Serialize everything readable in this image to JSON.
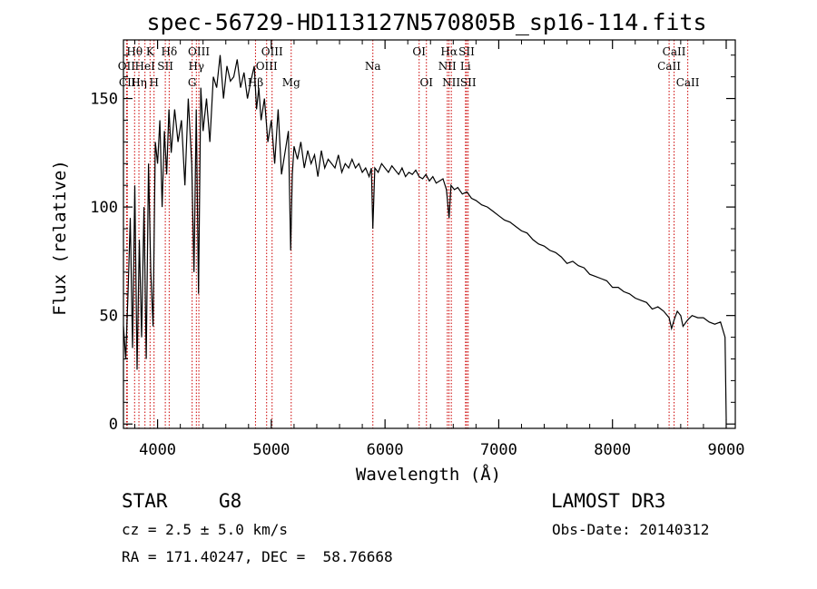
{
  "chart_data": {
    "type": "line",
    "title": "spec-56729-HD113127N570805B_sp16-114.fits",
    "xlabel": "Wavelength (Å)",
    "ylabel": "Flux (relative)",
    "xlim": [
      3700,
      9080
    ],
    "ylim": [
      -2,
      177
    ],
    "xticks": [
      4000,
      5000,
      6000,
      7000,
      8000,
      9000
    ],
    "yticks": [
      0,
      50,
      100,
      150
    ],
    "spectrum": {
      "x": [
        3700,
        3720,
        3740,
        3760,
        3780,
        3800,
        3820,
        3840,
        3860,
        3880,
        3900,
        3920,
        3940,
        3960,
        3980,
        4000,
        4020,
        4040,
        4060,
        4080,
        4100,
        4120,
        4150,
        4180,
        4210,
        4240,
        4270,
        4300,
        4320,
        4340,
        4360,
        4380,
        4400,
        4430,
        4460,
        4490,
        4520,
        4550,
        4580,
        4610,
        4640,
        4670,
        4700,
        4730,
        4760,
        4790,
        4820,
        4850,
        4870,
        4890,
        4910,
        4940,
        4970,
        5000,
        5030,
        5060,
        5090,
        5120,
        5150,
        5170,
        5185,
        5200,
        5230,
        5260,
        5290,
        5320,
        5350,
        5380,
        5410,
        5440,
        5470,
        5500,
        5530,
        5560,
        5590,
        5620,
        5650,
        5680,
        5710,
        5740,
        5770,
        5800,
        5830,
        5860,
        5880,
        5893,
        5910,
        5940,
        5970,
        6000,
        6030,
        6060,
        6090,
        6120,
        6150,
        6180,
        6210,
        6240,
        6270,
        6300,
        6330,
        6360,
        6390,
        6420,
        6450,
        6480,
        6510,
        6540,
        6563,
        6580,
        6610,
        6640,
        6680,
        6720,
        6760,
        6800,
        6850,
        6900,
        6950,
        7000,
        7050,
        7100,
        7150,
        7200,
        7250,
        7300,
        7350,
        7400,
        7450,
        7500,
        7550,
        7600,
        7650,
        7700,
        7750,
        7800,
        7850,
        7900,
        7950,
        8000,
        8050,
        8100,
        8150,
        8200,
        8250,
        8300,
        8350,
        8400,
        8450,
        8498,
        8520,
        8542,
        8570,
        8600,
        8620,
        8662,
        8700,
        8750,
        8800,
        8850,
        8900,
        8950,
        8990,
        9000
      ],
      "y": [
        45,
        30,
        60,
        95,
        35,
        110,
        25,
        85,
        40,
        100,
        30,
        120,
        70,
        45,
        130,
        120,
        140,
        100,
        135,
        115,
        145,
        125,
        145,
        130,
        140,
        110,
        150,
        120,
        70,
        145,
        60,
        155,
        135,
        150,
        130,
        160,
        155,
        170,
        150,
        165,
        158,
        160,
        168,
        155,
        162,
        150,
        158,
        165,
        145,
        155,
        140,
        150,
        130,
        140,
        120,
        145,
        115,
        125,
        135,
        80,
        115,
        128,
        122,
        130,
        118,
        126,
        120,
        124,
        114,
        126,
        118,
        122,
        120,
        118,
        124,
        116,
        120,
        118,
        122,
        118,
        120,
        116,
        118,
        114,
        118,
        90,
        118,
        116,
        120,
        118,
        116,
        119,
        117,
        115,
        118,
        114,
        116,
        115,
        117,
        114,
        113,
        115,
        112,
        114,
        111,
        112,
        113,
        108,
        95,
        110,
        108,
        109,
        106,
        107,
        104,
        103,
        101,
        100,
        98,
        96,
        94,
        93,
        91,
        89,
        88,
        85,
        83,
        82,
        80,
        79,
        77,
        74,
        75,
        73,
        72,
        69,
        68,
        67,
        66,
        63,
        63,
        61,
        60,
        58,
        57,
        56,
        53,
        54,
        52,
        49,
        44,
        48,
        52,
        50,
        45,
        48,
        50,
        49,
        49,
        47,
        46,
        47,
        40,
        2
      ]
    },
    "lines": [
      {
        "label": "Hθ",
        "wavelength": 3798,
        "row": 1
      },
      {
        "label": "OII",
        "wavelength": 3727,
        "row": 2
      },
      {
        "label": "CII",
        "wavelength": 3734,
        "row": 3
      },
      {
        "label": "Hη",
        "wavelength": 3836,
        "row": 3
      },
      {
        "label": "HeI",
        "wavelength": 3889,
        "row": 2
      },
      {
        "label": "K",
        "wavelength": 3934,
        "row": 1
      },
      {
        "label": "SII",
        "wavelength": 4068,
        "row": 2
      },
      {
        "label": "H",
        "wavelength": 3969,
        "row": 3
      },
      {
        "label": "Hδ",
        "wavelength": 4102,
        "row": 1
      },
      {
        "label": "OIII",
        "wavelength": 4363,
        "row": 1
      },
      {
        "label": "Hγ",
        "wavelength": 4341,
        "row": 2
      },
      {
        "label": "G",
        "wavelength": 4304,
        "row": 3
      },
      {
        "label": "Hβ",
        "wavelength": 4861,
        "row": 3
      },
      {
        "label": "OIII",
        "wavelength": 5007,
        "row": 1
      },
      {
        "label": "OIII",
        "wavelength": 4959,
        "row": 2
      },
      {
        "label": "Mg",
        "wavelength": 5175,
        "row": 3
      },
      {
        "label": "Na",
        "wavelength": 5893,
        "row": 2
      },
      {
        "label": "OI",
        "wavelength": 6300,
        "row": 1
      },
      {
        "label": "OI",
        "wavelength": 6364,
        "row": 3
      },
      {
        "label": "Hα",
        "wavelength": 6563,
        "row": 1
      },
      {
        "label": "NII",
        "wavelength": 6548,
        "row": 2
      },
      {
        "label": "NII",
        "wavelength": 6583,
        "row": 3
      },
      {
        "label": "SII",
        "wavelength": 6717,
        "row": 1
      },
      {
        "label": "Li",
        "wavelength": 6708,
        "row": 2
      },
      {
        "label": "SII",
        "wavelength": 6731,
        "row": 3
      },
      {
        "label": "CaII",
        "wavelength": 8542,
        "row": 1
      },
      {
        "label": "CaII",
        "wavelength": 8498,
        "row": 2
      },
      {
        "label": "CaII",
        "wavelength": 8662,
        "row": 3
      }
    ]
  },
  "info": {
    "class": "STAR",
    "subclass": "G8",
    "survey": "LAMOST DR3",
    "cz": "cz = 2.5 ± 5.0 km/s",
    "obs_date": "Obs-Date: 20140312",
    "radec": "RA = 171.40247, DEC =  58.76668"
  },
  "colors": {
    "line_marker": "#cc0000",
    "spectrum": "#000000",
    "axis": "#000000"
  }
}
